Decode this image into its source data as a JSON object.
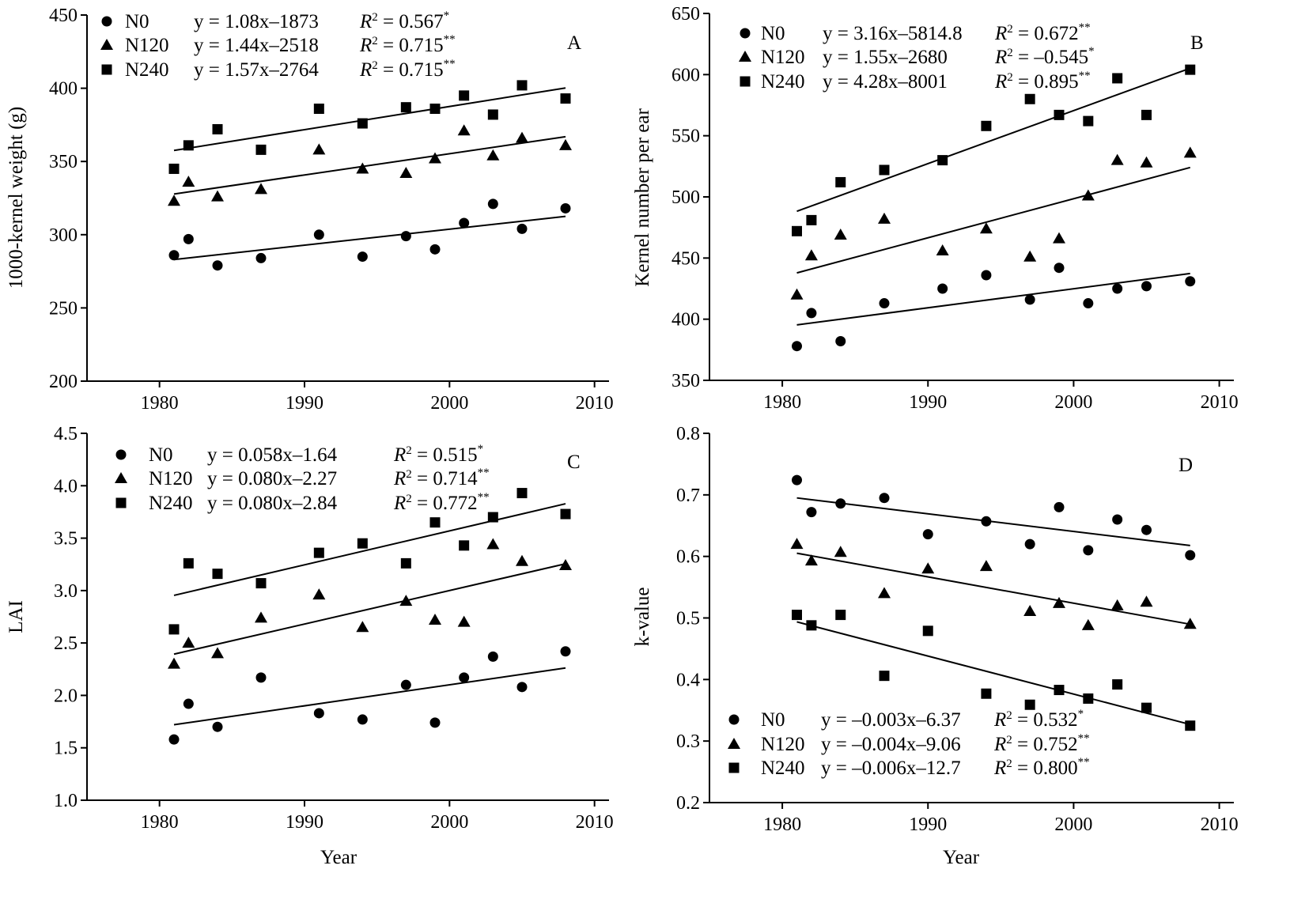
{
  "chart_data": [
    {
      "type": "scatter",
      "panel_label": "A",
      "xlabel": "",
      "ylabel": "1000-kernel weight (g)",
      "xlim": [
        1975,
        2011
      ],
      "ylim": [
        200,
        450
      ],
      "xticks": [
        "1980",
        "1990",
        "2000",
        "2010"
      ],
      "yticks": [
        "200",
        "250",
        "300",
        "350",
        "400",
        "450"
      ],
      "legend_position": "top-left",
      "x": [
        1981,
        1982,
        1984,
        1987,
        1991,
        1994,
        1997,
        1999,
        2001,
        2003,
        2005,
        2008
      ],
      "series": [
        {
          "name": "N0",
          "marker": "circle",
          "equation": "y = 1.08x–1873",
          "r2": "0.567",
          "sig": "*",
          "values": [
            286,
            297,
            279,
            284,
            300,
            285,
            299,
            290,
            308,
            321,
            304,
            318
          ]
        },
        {
          "name": "N120",
          "marker": "triangle",
          "equation": "y = 1.44x–2518",
          "r2": "0.715",
          "sig": "**",
          "values": [
            323,
            336,
            326,
            331,
            358,
            345,
            342,
            352,
            371,
            354,
            366,
            361
          ]
        },
        {
          "name": "N240",
          "marker": "square",
          "equation": "y = 1.57x–2764",
          "r2": "0.715",
          "sig": "**",
          "values": [
            345,
            361,
            372,
            358,
            386,
            376,
            387,
            386,
            395,
            382,
            402,
            393
          ]
        }
      ]
    },
    {
      "type": "scatter",
      "panel_label": "B",
      "xlabel": "",
      "ylabel": "Kernel number per ear",
      "xlim": [
        1975,
        2011
      ],
      "ylim": [
        350,
        650
      ],
      "xticks": [
        "1980",
        "1990",
        "2000",
        "2010"
      ],
      "yticks": [
        "350",
        "400",
        "450",
        "500",
        "550",
        "600",
        "650"
      ],
      "legend_position": "top-left",
      "x": [
        1981,
        1982,
        1984,
        1987,
        1991,
        1994,
        1997,
        1999,
        2001,
        2003,
        2005,
        2008
      ],
      "series": [
        {
          "name": "N0",
          "marker": "circle",
          "equation": "y = 3.16x–5814.8",
          "r2": "0.672",
          "sig": "**",
          "values": [
            378,
            405,
            382,
            413,
            425,
            436,
            416,
            442,
            413,
            425,
            427,
            431
          ]
        },
        {
          "name": "N120",
          "marker": "triangle",
          "equation": "y = 1.55x–2680",
          "r2": "–0.545",
          "sig": "*",
          "values": [
            420,
            452,
            469,
            482,
            456,
            474,
            451,
            466,
            501,
            530,
            528,
            536
          ]
        },
        {
          "name": "N240",
          "marker": "square",
          "equation": "y = 4.28x–8001",
          "r2": "0.895",
          "sig": "**",
          "values": [
            472,
            481,
            512,
            522,
            530,
            558,
            580,
            567,
            562,
            597,
            567,
            604
          ]
        }
      ]
    },
    {
      "type": "scatter",
      "panel_label": "C",
      "xlabel": "Year",
      "ylabel": "LAI",
      "xlim": [
        1975,
        2011
      ],
      "ylim": [
        1.0,
        4.5
      ],
      "xticks": [
        "1980",
        "1990",
        "2000",
        "2010"
      ],
      "yticks": [
        "1.0",
        "1.5",
        "2.0",
        "2.5",
        "3.0",
        "3.5",
        "4.0",
        "4.5"
      ],
      "legend_position": "top-left",
      "x": [
        1981,
        1982,
        1984,
        1987,
        1991,
        1994,
        1997,
        1999,
        2001,
        2003,
        2005,
        2008
      ],
      "series": [
        {
          "name": "N0",
          "marker": "circle",
          "equation": "y = 0.058x–1.64",
          "r2": "0.515",
          "sig": "*",
          "values": [
            1.58,
            1.92,
            1.7,
            2.17,
            1.83,
            1.77,
            2.1,
            1.74,
            2.17,
            2.37,
            2.08,
            2.42
          ]
        },
        {
          "name": "N120",
          "marker": "triangle",
          "equation": "y = 0.080x–2.27",
          "r2": "0.714",
          "sig": "**",
          "values": [
            2.3,
            2.5,
            2.4,
            2.74,
            2.96,
            2.65,
            2.9,
            2.72,
            2.7,
            3.44,
            3.28,
            3.24
          ]
        },
        {
          "name": "N240",
          "marker": "square",
          "equation": "y = 0.080x–2.84",
          "r2": "0.772",
          "sig": "**",
          "values": [
            2.63,
            3.26,
            3.16,
            3.07,
            3.36,
            3.45,
            3.26,
            3.65,
            3.43,
            3.7,
            3.93,
            3.73
          ]
        }
      ]
    },
    {
      "type": "scatter",
      "panel_label": "D",
      "xlabel": "Year",
      "ylabel": "k-value",
      "xlim": [
        1975,
        2011
      ],
      "ylim": [
        0.2,
        0.8
      ],
      "xticks": [
        "1980",
        "1990",
        "2000",
        "2010"
      ],
      "yticks": [
        "0.2",
        "0.3",
        "0.4",
        "0.5",
        "0.6",
        "0.7",
        "0.8"
      ],
      "legend_position": "bottom-left",
      "x": [
        1981,
        1982,
        1984,
        1987,
        1990,
        1994,
        1997,
        1999,
        2001,
        2003,
        2005,
        2008
      ],
      "series": [
        {
          "name": "N0",
          "marker": "circle",
          "equation": "y = –0.003x–6.37",
          "r2": "0.532",
          "sig": "*",
          "values": [
            0.724,
            0.672,
            0.686,
            0.695,
            0.636,
            0.657,
            0.62,
            0.68,
            0.61,
            0.66,
            0.643,
            0.602
          ]
        },
        {
          "name": "N120",
          "marker": "triangle",
          "equation": "y = –0.004x–9.06",
          "r2": "0.752",
          "sig": "**",
          "values": [
            0.62,
            0.593,
            0.607,
            0.54,
            0.58,
            0.584,
            0.511,
            0.524,
            0.488,
            0.52,
            0.526,
            0.49
          ]
        },
        {
          "name": "N240",
          "marker": "square",
          "equation": "y = –0.006x–12.7",
          "r2": "0.800",
          "sig": "**",
          "values": [
            0.505,
            0.488,
            0.505,
            0.406,
            0.479,
            0.377,
            0.359,
            0.383,
            0.369,
            0.392,
            0.354,
            0.325
          ]
        }
      ]
    }
  ]
}
